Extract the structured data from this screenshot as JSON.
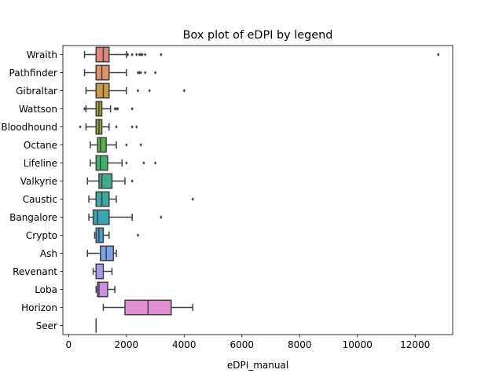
{
  "chart_data": {
    "type": "box",
    "title": "Box plot of eDPI by legend",
    "xlabel": "eDPI_manual",
    "ylabel": "",
    "xlim": [
      -200,
      13300
    ],
    "xticks": [
      0,
      2000,
      4000,
      6000,
      8000,
      10000,
      12000
    ],
    "xtick_labels": [
      "0",
      "2000",
      "4000",
      "6000",
      "8000",
      "10000",
      "12000"
    ],
    "orientation": "horizontal",
    "grid": false,
    "categories": [
      "Wraith",
      "Pathfinder",
      "Gibraltar",
      "Wattson",
      "Bloodhound",
      "Octane",
      "Lifeline",
      "Valkyrie",
      "Caustic",
      "Bangalore",
      "Crypto",
      "Ash",
      "Revenant",
      "Loba",
      "Horizon",
      "Seer"
    ],
    "boxes": [
      {
        "category": "Wraith",
        "color": "#e1857a",
        "whisker_low": 550,
        "q1": 950,
        "median": 1200,
        "q3": 1400,
        "whisker_high": 2000,
        "outliers": [
          2050,
          2200,
          2350,
          2450,
          2500,
          2550,
          2650,
          3200,
          12800
        ]
      },
      {
        "category": "Pathfinder",
        "color": "#e2926b",
        "whisker_low": 550,
        "q1": 950,
        "median": 1150,
        "q3": 1400,
        "whisker_high": 2000,
        "outliers": [
          2400,
          2450,
          2500,
          2650,
          3000
        ]
      },
      {
        "category": "Gibraltar",
        "color": "#c99a45",
        "whisker_low": 600,
        "q1": 950,
        "median": 1200,
        "q3": 1400,
        "whisker_high": 2000,
        "outliers": [
          2400,
          2800,
          4000
        ]
      },
      {
        "category": "Wattson",
        "color": "#a8a23e",
        "whisker_low": 600,
        "q1": 950,
        "median": 1050,
        "q3": 1150,
        "whisker_high": 1450,
        "outliers": [
          550,
          1600,
          1650,
          1700,
          2200
        ]
      },
      {
        "category": "Bloodhound",
        "color": "#8aa83f",
        "whisker_low": 600,
        "q1": 950,
        "median": 1050,
        "q3": 1150,
        "whisker_high": 1400,
        "outliers": [
          400,
          1650,
          2200,
          2350
        ]
      },
      {
        "category": "Octane",
        "color": "#59b245",
        "whisker_low": 750,
        "q1": 1000,
        "median": 1100,
        "q3": 1300,
        "whisker_high": 1650,
        "outliers": [
          2000,
          2500
        ]
      },
      {
        "category": "Lifeline",
        "color": "#3cb26b",
        "whisker_low": 750,
        "q1": 950,
        "median": 1100,
        "q3": 1350,
        "whisker_high": 1850,
        "outliers": [
          2000,
          2600,
          3000
        ]
      },
      {
        "category": "Valkyrie",
        "color": "#3bae8f",
        "whisker_low": 650,
        "q1": 1050,
        "median": 1150,
        "q3": 1500,
        "whisker_high": 1950,
        "outliers": [
          2200
        ]
      },
      {
        "category": "Caustic",
        "color": "#3aaaa2",
        "whisker_low": 700,
        "q1": 950,
        "median": 1150,
        "q3": 1400,
        "whisker_high": 1650,
        "outliers": [
          4300
        ]
      },
      {
        "category": "Bangalore",
        "color": "#3aa4b4",
        "whisker_low": 700,
        "q1": 850,
        "median": 1000,
        "q3": 1400,
        "whisker_high": 2200,
        "outliers": [
          3200
        ]
      },
      {
        "category": "Crypto",
        "color": "#4a9fce",
        "whisker_low": 900,
        "q1": 950,
        "median": 1050,
        "q3": 1200,
        "whisker_high": 1400,
        "outliers": [
          2400
        ]
      },
      {
        "category": "Ash",
        "color": "#7da2e6",
        "whisker_low": 650,
        "q1": 1100,
        "median": 1300,
        "q3": 1550,
        "whisker_high": 1650,
        "outliers": []
      },
      {
        "category": "Revenant",
        "color": "#a89ae8",
        "whisker_low": 850,
        "q1": 950,
        "median": 950,
        "q3": 1200,
        "whisker_high": 1500,
        "outliers": []
      },
      {
        "category": "Loba",
        "color": "#cf8ee5",
        "whisker_low": 950,
        "q1": 1000,
        "median": 1050,
        "q3": 1350,
        "whisker_high": 1600,
        "outliers": []
      },
      {
        "category": "Horizon",
        "color": "#e38ed5",
        "whisker_low": 1200,
        "q1": 1950,
        "median": 2750,
        "q3": 3550,
        "whisker_high": 4300,
        "outliers": []
      },
      {
        "category": "Seer",
        "color": "#e58cb5",
        "whisker_low": 950,
        "q1": 950,
        "median": 950,
        "q3": 950,
        "whisker_high": 950,
        "outliers": []
      }
    ]
  }
}
